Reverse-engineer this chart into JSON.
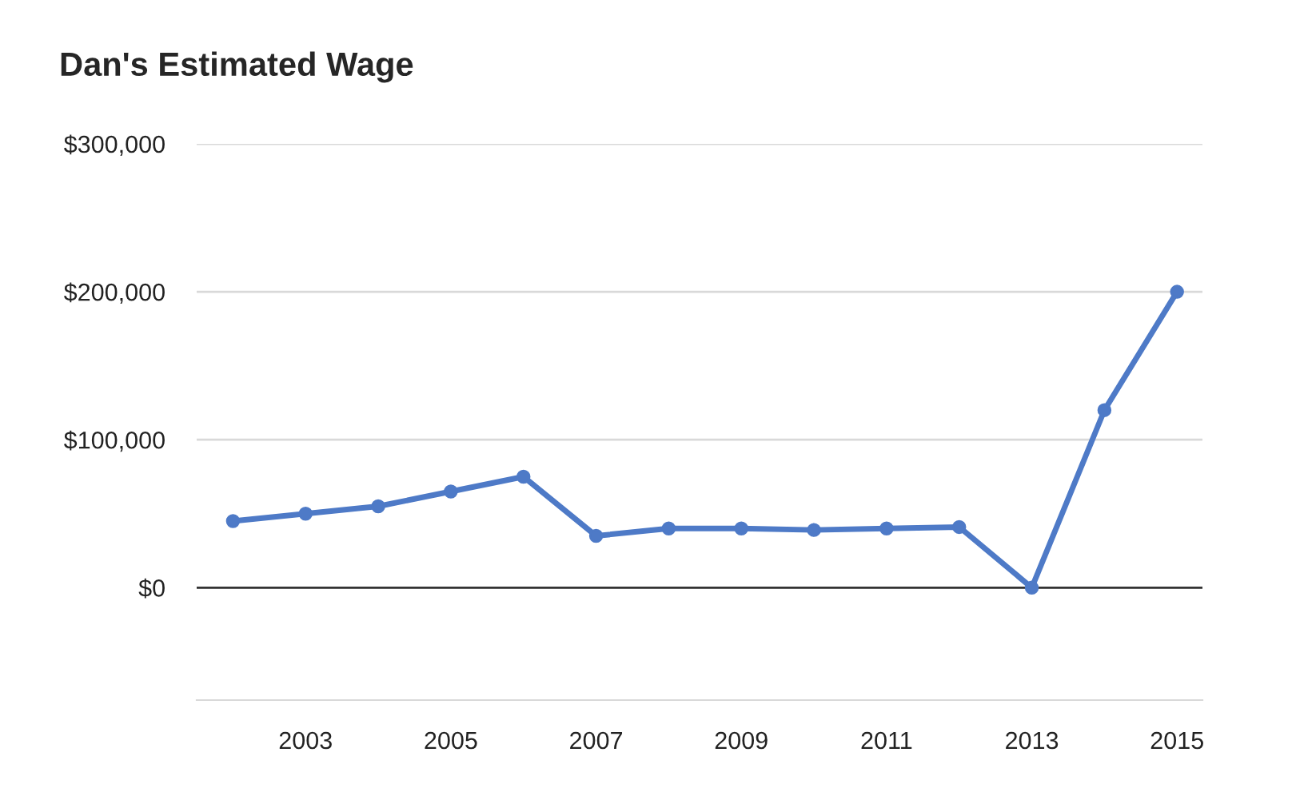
{
  "chart_data": {
    "type": "line",
    "title": "Dan's Estimated Wage",
    "x": [
      2002,
      2003,
      2004,
      2005,
      2006,
      2007,
      2008,
      2009,
      2010,
      2011,
      2012,
      2013,
      2014,
      2015
    ],
    "series": [
      {
        "color": "#4e7ac7",
        "values": [
          45000,
          50000,
          55000,
          65000,
          75000,
          35000,
          40000,
          40000,
          39000,
          40000,
          41000,
          0,
          120000,
          200000
        ]
      }
    ],
    "xlim": [
      2001.5,
      2015.35
    ],
    "xticks": [
      2003,
      2005,
      2007,
      2009,
      2011,
      2013,
      2015
    ],
    "ylim": [
      -76000,
      300000
    ],
    "yticks": [
      {
        "value": 0,
        "label": "$0"
      },
      {
        "value": 100000,
        "label": "$100,000"
      },
      {
        "value": 200000,
        "label": "$200,000"
      },
      {
        "value": 300000,
        "label": "$300,000"
      }
    ],
    "ref_lines": [
      {
        "axis": "y",
        "value": 0,
        "color": "#333333"
      }
    ],
    "grid": "y",
    "marker": "circle",
    "line_style": "solid",
    "legend": false
  }
}
